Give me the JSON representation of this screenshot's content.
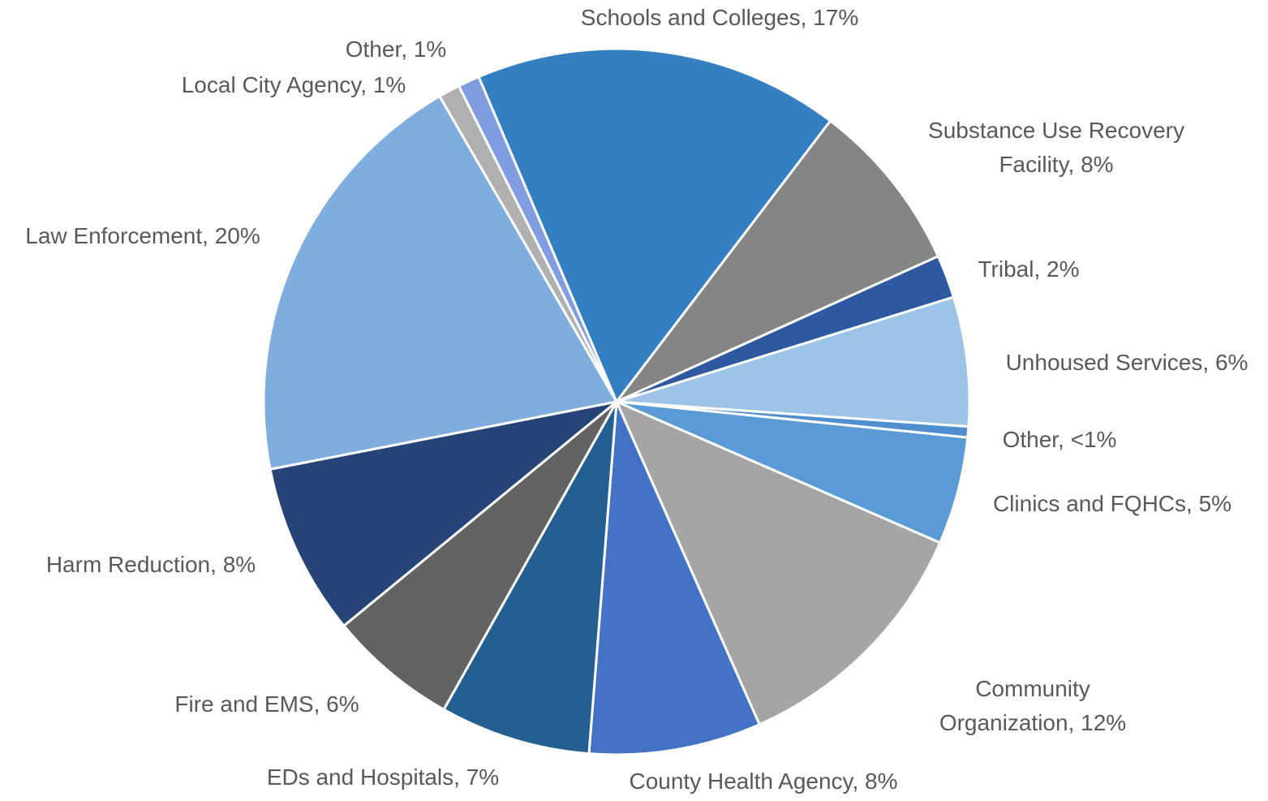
{
  "chart_data": {
    "type": "pie",
    "categories": [
      "Schools and Colleges",
      "Substance Use Recovery Facility",
      "Tribal",
      "Unhoused Services",
      "Other",
      "Clinics and FQHCs",
      "Community Organization",
      "County Health Agency",
      "EDs and Hospitals",
      "Fire and EMS",
      "Harm Reduction",
      "Law Enforcement",
      "Local City Agency",
      "Other"
    ],
    "values": [
      17,
      8,
      2,
      6,
      0.5,
      5,
      12,
      8,
      7,
      6,
      8,
      20,
      1,
      1
    ],
    "value_labels": [
      "17%",
      "8%",
      "2%",
      "6%",
      "<1%",
      "5%",
      "12%",
      "8%",
      "7%",
      "6%",
      "8%",
      "20%",
      "1%",
      "1%"
    ],
    "colors": [
      "#337fc2",
      "#858585",
      "#2e58a0",
      "#9dc3e6",
      "#4f8fcf",
      "#5b9bd5",
      "#a5a5a5",
      "#4472c4",
      "#255e91",
      "#636363",
      "#264478",
      "#7eadde",
      "#b0b0b0",
      "#7f9de0"
    ]
  }
}
